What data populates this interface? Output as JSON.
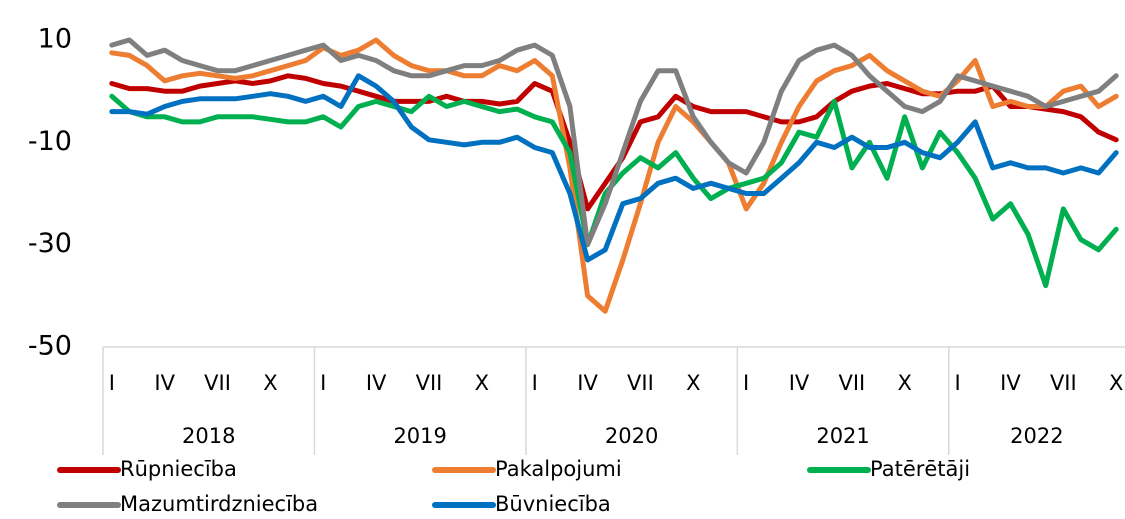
{
  "chart_data": {
    "type": "line",
    "categories": [
      "I",
      null,
      null,
      "IV",
      null,
      null,
      "VII",
      null,
      null,
      "X",
      null,
      null,
      "I",
      null,
      null,
      "IV",
      null,
      null,
      "VII",
      null,
      null,
      "X",
      null,
      null,
      "I",
      null,
      null,
      "IV",
      null,
      null,
      "VII",
      null,
      null,
      "X",
      null,
      null,
      "I",
      null,
      null,
      "IV",
      null,
      null,
      "VII",
      null,
      null,
      "X",
      null,
      null,
      "I",
      null,
      null,
      "IV",
      null,
      null,
      "VII",
      null,
      null,
      "X"
    ],
    "years": [
      "2018",
      "2019",
      "2020",
      "2021",
      "2022"
    ],
    "ylim": [
      -50,
      12
    ],
    "yticks": [
      10,
      -10,
      -30,
      -50
    ],
    "series": [
      {
        "name": "Rūpniecība",
        "color": "#c00000",
        "values": [
          1.5,
          0.5,
          0.5,
          0,
          0,
          1,
          1.5,
          2,
          1.5,
          2,
          3,
          2.5,
          1.5,
          1,
          0,
          -1,
          -2,
          -2,
          -2,
          -1,
          -2,
          -2,
          -2.5,
          -2,
          1.5,
          0,
          -10,
          -23,
          -18,
          -13,
          -6,
          -5,
          -1,
          -3,
          -4,
          -4,
          -4,
          -5,
          -6,
          -6,
          -5,
          -2,
          0,
          1,
          1.5,
          0.5,
          -0.5,
          -0.5,
          0,
          0,
          1,
          -3,
          -3,
          -3.5,
          -4,
          -5,
          -8,
          -9.5
        ]
      },
      {
        "name": "Pakalpojumi",
        "color": "#ed7d31",
        "values": [
          7.5,
          7,
          5,
          2,
          3,
          3.5,
          3,
          2.5,
          3,
          4,
          5,
          6,
          8.5,
          7,
          8,
          10,
          7,
          5,
          4,
          4,
          3,
          3,
          5,
          4,
          6,
          3,
          -15,
          -40,
          -43,
          -33,
          -22,
          -10,
          -3,
          -6,
          -10,
          -14,
          -23,
          -18,
          -10,
          -3,
          2,
          4,
          5,
          7,
          4,
          2,
          0,
          -1,
          2,
          6,
          -3,
          -2,
          -3,
          -3,
          0,
          1,
          -3,
          -1
        ]
      },
      {
        "name": "Patērētāji",
        "color": "#00b050",
        "values": [
          -1,
          -4,
          -5,
          -5,
          -6,
          -6,
          -5,
          -5,
          -5,
          -5.5,
          -6,
          -6,
          -5,
          -7,
          -3,
          -2,
          -3,
          -4,
          -1,
          -3,
          -2,
          -3,
          -4,
          -3.5,
          -5,
          -6,
          -12,
          -30,
          -20,
          -16,
          -13,
          -15,
          -12,
          -17,
          -21,
          -19,
          -18,
          -17,
          -14,
          -8,
          -9,
          -2,
          -15,
          -10,
          -17,
          -5,
          -15,
          -8,
          -12,
          -17,
          -25,
          -22,
          -28,
          -38,
          -23,
          -29,
          -31,
          -27
        ]
      },
      {
        "name": "Mazumtirdzniecība",
        "color": "#7f7f7f",
        "values": [
          9,
          10,
          7,
          8,
          6,
          5,
          4,
          4,
          5,
          6,
          7,
          8,
          9,
          6,
          7,
          6,
          4,
          3,
          3,
          4,
          5,
          5,
          6,
          8,
          9,
          7,
          -3,
          -30,
          -22,
          -12,
          -2,
          4,
          4,
          -5,
          -10,
          -14,
          -16,
          -10,
          0,
          6,
          8,
          9,
          7,
          3,
          0,
          -3,
          -4,
          -2,
          3,
          2,
          1,
          0,
          -1,
          -3,
          -2,
          -1,
          0,
          3
        ]
      },
      {
        "name": "Būvniecība",
        "color": "#0070c0",
        "values": [
          -4,
          -4,
          -4.5,
          -3,
          -2,
          -1.5,
          -1.5,
          -1.5,
          -1,
          -0.5,
          -1,
          -2,
          -1,
          -3,
          3,
          1,
          -2,
          -7,
          -9.5,
          -10,
          -10.5,
          -10,
          -10,
          -9,
          -11,
          -12,
          -20,
          -33,
          -31,
          -22,
          -21,
          -18,
          -17,
          -19,
          -18,
          -19,
          -20,
          -20,
          -17,
          -14,
          -10,
          -11,
          -9,
          -11,
          -11,
          -10,
          -12,
          -13,
          -10,
          -6,
          -15,
          -14,
          -15,
          -15,
          -16,
          -15,
          -16,
          -12
        ]
      }
    ]
  }
}
